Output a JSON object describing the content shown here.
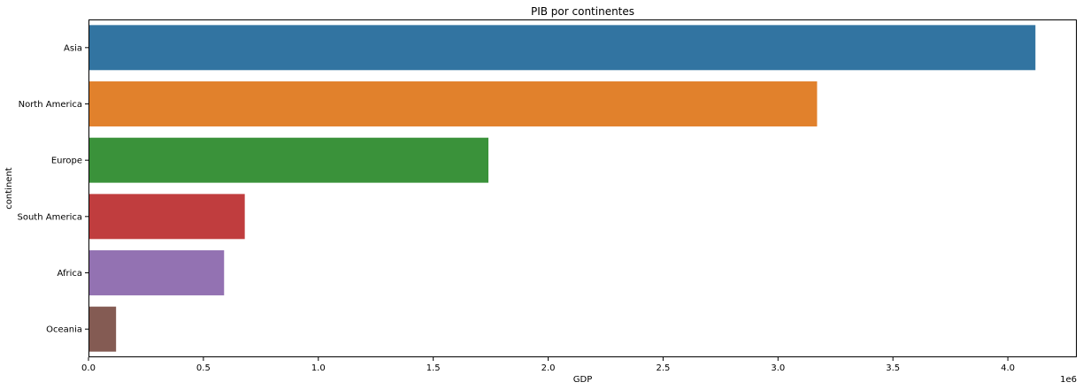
{
  "chart_data": {
    "type": "bar",
    "orientation": "horizontal",
    "title": "PIB por continentes",
    "xlabel": "GDP",
    "ylabel": "continent",
    "x_offset_label": "1e6",
    "xlim": [
      0,
      4.3
    ],
    "xticks": [
      0,
      0.5,
      1.0,
      1.5,
      2.0,
      2.5,
      3.0,
      3.5,
      4.0
    ],
    "xtick_labels": [
      "0.0",
      "0.5",
      "1.0",
      "1.5",
      "2.0",
      "2.5",
      "3.0",
      "3.5",
      "4.0"
    ],
    "grid": false,
    "categories": [
      "Asia",
      "North America",
      "Europe",
      "South America",
      "Africa",
      "Oceania"
    ],
    "values": [
      4.12,
      3.17,
      1.74,
      0.68,
      0.59,
      0.12
    ],
    "colors": [
      "#3274a1",
      "#e1812c",
      "#3a923a",
      "#c03d3e",
      "#9372b2",
      "#845b53"
    ]
  }
}
